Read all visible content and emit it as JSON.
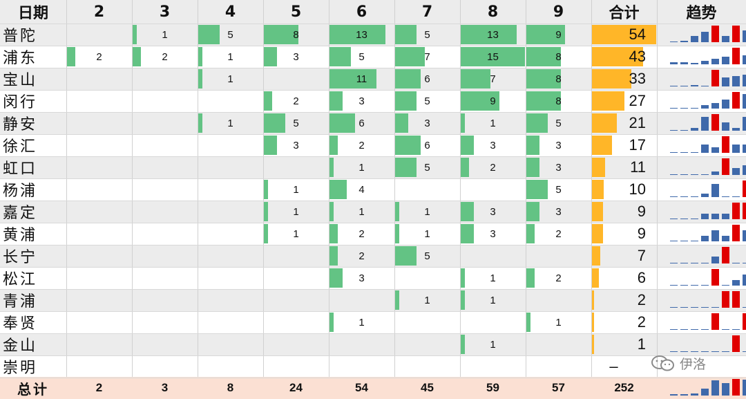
{
  "chart_data": {
    "type": "table",
    "header": {
      "label": "日期",
      "days": [
        "2",
        "3",
        "4",
        "5",
        "6",
        "7",
        "8",
        "9"
      ],
      "total_label": "合计",
      "trend_label": "趋势"
    },
    "rows": [
      {
        "name": "普陀",
        "values": [
          null,
          1,
          5,
          8,
          13,
          5,
          13,
          9
        ],
        "total": 54
      },
      {
        "name": "浦东",
        "values": [
          2,
          2,
          1,
          3,
          5,
          7,
          15,
          8
        ],
        "total": 43
      },
      {
        "name": "宝山",
        "values": [
          null,
          null,
          1,
          null,
          11,
          6,
          7,
          8
        ],
        "total": 33
      },
      {
        "name": "闵行",
        "values": [
          null,
          null,
          null,
          2,
          3,
          5,
          9,
          8
        ],
        "total": 27
      },
      {
        "name": "静安",
        "values": [
          null,
          null,
          1,
          5,
          6,
          3,
          1,
          5
        ],
        "total": 21
      },
      {
        "name": "徐汇",
        "values": [
          null,
          null,
          null,
          3,
          2,
          6,
          3,
          3
        ],
        "total": 17
      },
      {
        "name": "虹口",
        "values": [
          null,
          null,
          null,
          null,
          1,
          5,
          2,
          3
        ],
        "total": 11
      },
      {
        "name": "杨浦",
        "values": [
          null,
          null,
          null,
          1,
          4,
          null,
          null,
          5
        ],
        "total": 10
      },
      {
        "name": "嘉定",
        "values": [
          null,
          null,
          null,
          1,
          1,
          1,
          3,
          3
        ],
        "total": 9
      },
      {
        "name": "黄浦",
        "values": [
          null,
          null,
          null,
          1,
          2,
          1,
          3,
          2
        ],
        "total": 9
      },
      {
        "name": "长宁",
        "values": [
          null,
          null,
          null,
          null,
          2,
          5,
          null,
          null
        ],
        "total": 7
      },
      {
        "name": "松江",
        "values": [
          null,
          null,
          null,
          null,
          3,
          null,
          1,
          2
        ],
        "total": 6
      },
      {
        "name": "青浦",
        "values": [
          null,
          null,
          null,
          null,
          null,
          1,
          1,
          null
        ],
        "total": 2
      },
      {
        "name": "奉贤",
        "values": [
          null,
          null,
          null,
          null,
          1,
          null,
          null,
          1
        ],
        "total": 2
      },
      {
        "name": "金山",
        "values": [
          null,
          null,
          null,
          null,
          null,
          null,
          1,
          null
        ],
        "total": 1
      },
      {
        "name": "崇明",
        "values": [
          null,
          null,
          null,
          null,
          null,
          null,
          null,
          null
        ],
        "total": null,
        "total_text": "–"
      }
    ],
    "footer": {
      "label": "总计",
      "values": [
        2,
        3,
        8,
        24,
        54,
        45,
        59,
        57
      ],
      "total": 252
    },
    "bar_scales": {
      "daily_max": 15,
      "total_max": 54
    },
    "colors": {
      "daily_bar": "#63c384",
      "total_bar": "#ffb628",
      "trend_bar": "#3f69aa",
      "trend_peak": "#e00000",
      "stripe": "#ececec",
      "footer": "#fbe0d3"
    }
  },
  "watermark": {
    "text": "伊洛",
    "icon": "wechat-icon"
  }
}
